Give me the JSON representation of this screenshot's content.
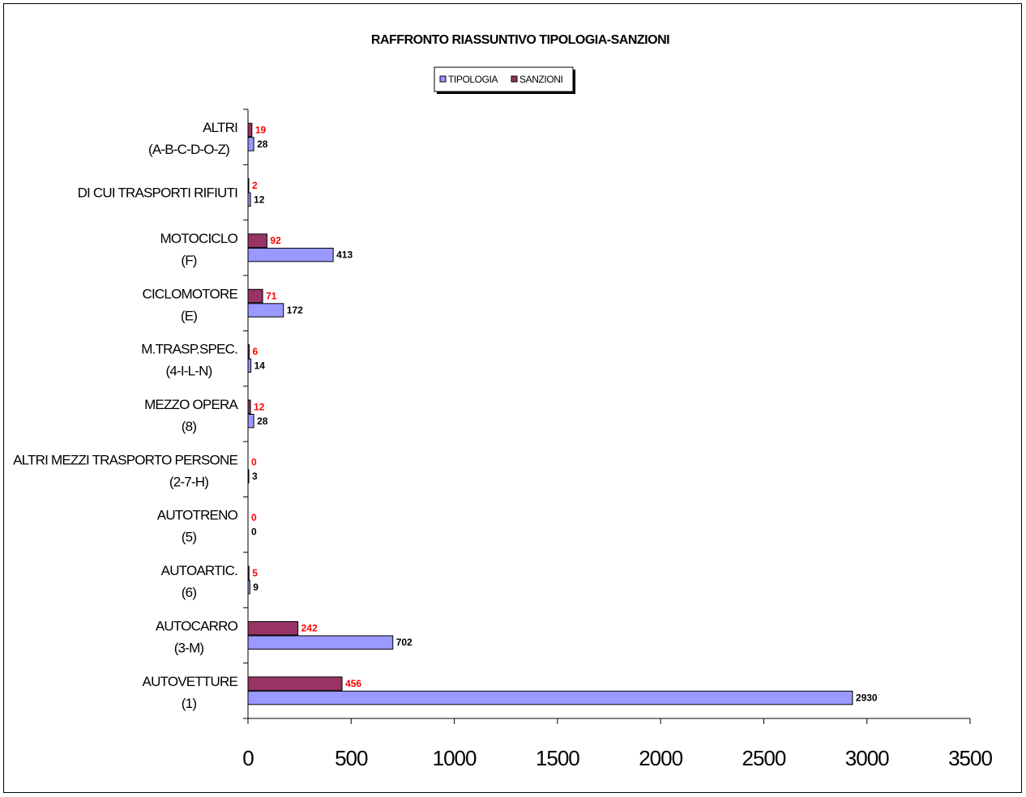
{
  "chart_data": {
    "type": "bar",
    "orientation": "horizontal",
    "title": "RAFFRONTO RIASSUNTIVO TIPOLOGIA-SANZIONI",
    "categories": [
      [
        "AUTOVETTURE",
        "(1)"
      ],
      [
        "AUTOCARRO",
        "(3-M)"
      ],
      [
        "AUTOARTIC.",
        "(6)"
      ],
      [
        "AUTOTRENO",
        "(5)"
      ],
      [
        "ALTRI MEZZI TRASPORTO PERSONE",
        "(2-7-H)"
      ],
      [
        "MEZZO OPERA",
        "(8)"
      ],
      [
        "M.TRASP.SPEC.",
        "(4-I-L-N)"
      ],
      [
        "CICLOMOTORE",
        "(E)"
      ],
      [
        "MOTOCICLO",
        "(F)"
      ],
      [
        "DI CUI TRASPORTI RIFIUTI"
      ],
      [
        "ALTRI",
        "(A-B-C-D-O-Z)"
      ]
    ],
    "series": [
      {
        "name": "TIPOLOGIA",
        "color": "#9999ff",
        "label_color": "#000000",
        "values": [
          2930,
          702,
          9,
          0,
          3,
          28,
          14,
          172,
          413,
          12,
          28
        ]
      },
      {
        "name": "SANZIONI",
        "color": "#993366",
        "label_color": "#ff0000",
        "values": [
          456,
          242,
          5,
          0,
          0,
          12,
          6,
          71,
          92,
          2,
          19
        ]
      }
    ],
    "xlim": [
      0,
      3500
    ],
    "xticks": [
      "0",
      "500",
      "1000",
      "1500",
      "2000",
      "2500",
      "3000",
      "3500"
    ],
    "legend_position": "top-center",
    "grid": false
  }
}
